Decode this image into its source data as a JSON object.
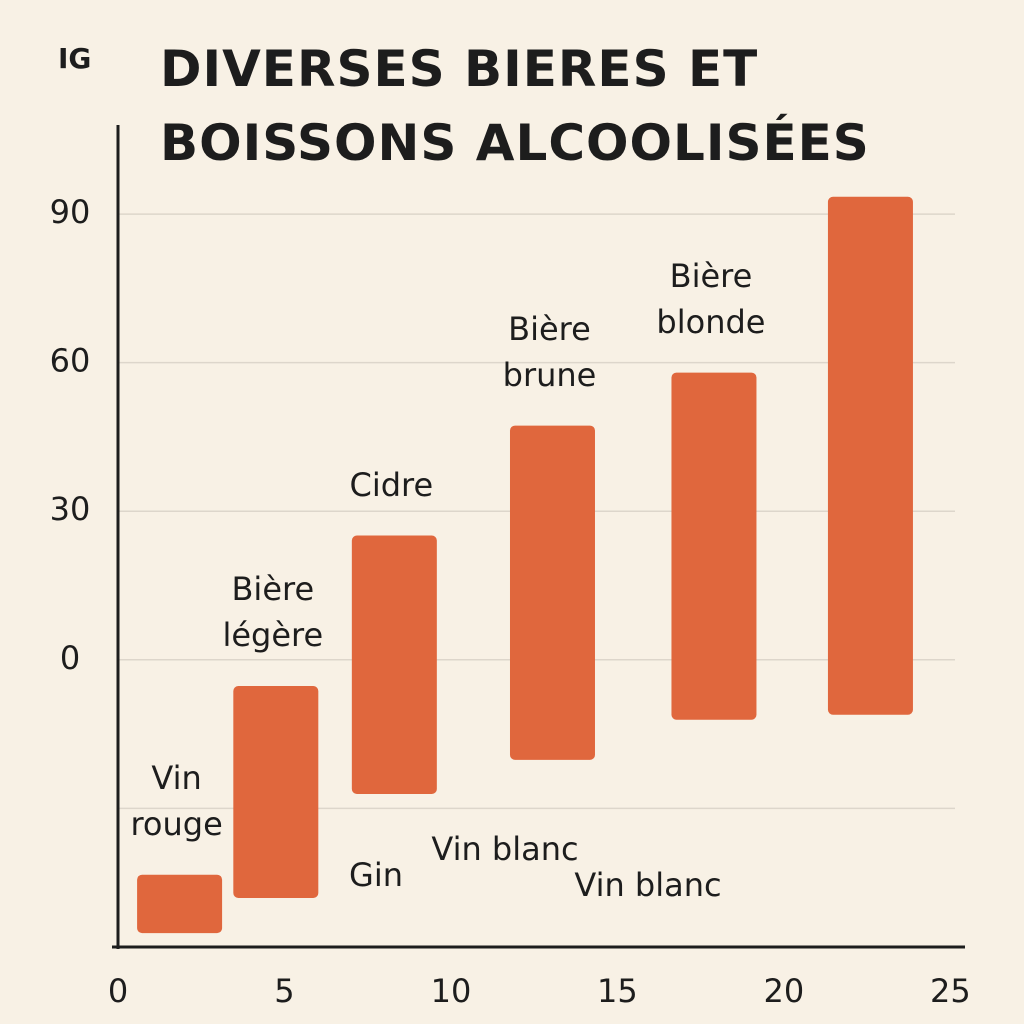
{
  "chart_data": {
    "type": "floating_bar",
    "title": "DIVERSES BIERES ET BOISSONS ALCOOLISÉES",
    "y_label": "IG",
    "x": [
      1.85,
      4.74,
      8.3,
      13.05,
      17.9,
      22.6
    ],
    "low": [
      -55.2,
      -48.1,
      -27.1,
      -20.2,
      -12.1,
      -11.1
    ],
    "high": [
      -43.4,
      -5.3,
      25.1,
      47.3,
      58.0,
      93.5
    ],
    "bar_labels": [
      "Vin rouge",
      "Bière légère",
      "Cidre",
      "Bière brune",
      "Bière blonde",
      null
    ],
    "annotations": [
      "Gin",
      "Vin blanc",
      "Vin blanc"
    ],
    "color": "#e0673d",
    "xlim": [
      0,
      25.5
    ],
    "xticks": [
      0,
      5,
      10,
      15,
      20,
      25
    ],
    "ylim": [
      -58,
      108
    ],
    "yticks": [
      {
        "value": -30,
        "label": null
      },
      0,
      30,
      60,
      90
    ],
    "grid": true
  }
}
